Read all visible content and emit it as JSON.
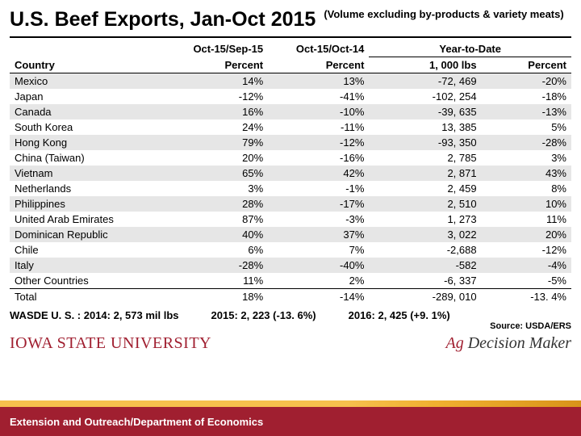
{
  "title": "U.S. Beef Exports, Jan-Oct 2015",
  "subtitle": "(Volume excluding by-products & variety meats)",
  "headers": {
    "country": "Country",
    "col2": "Oct-15/Sep-15",
    "col3": "Oct-15/Oct-14",
    "ytd": "Year-to-Date",
    "sub2": "Percent",
    "sub3": "Percent",
    "sub4": "1, 000 lbs",
    "sub5": "Percent"
  },
  "rows": [
    {
      "country": "Mexico",
      "c2": "14%",
      "c3": "13%",
      "c4": "-72, 469",
      "c5": "-20%"
    },
    {
      "country": "Japan",
      "c2": "-12%",
      "c3": "-41%",
      "c4": "-102, 254",
      "c5": "-18%"
    },
    {
      "country": "Canada",
      "c2": "16%",
      "c3": "-10%",
      "c4": "-39, 635",
      "c5": "-13%"
    },
    {
      "country": "South Korea",
      "c2": "24%",
      "c3": "-11%",
      "c4": "13, 385",
      "c5": "5%"
    },
    {
      "country": "Hong Kong",
      "c2": "79%",
      "c3": "-12%",
      "c4": "-93, 350",
      "c5": "-28%"
    },
    {
      "country": "China (Taiwan)",
      "c2": "20%",
      "c3": "-16%",
      "c4": "2, 785",
      "c5": "3%"
    },
    {
      "country": "Vietnam",
      "c2": "65%",
      "c3": "42%",
      "c4": "2, 871",
      "c5": "43%"
    },
    {
      "country": "Netherlands",
      "c2": "3%",
      "c3": "-1%",
      "c4": "2, 459",
      "c5": "8%"
    },
    {
      "country": "Philippines",
      "c2": "28%",
      "c3": "-17%",
      "c4": "2, 510",
      "c5": "10%"
    },
    {
      "country": "United Arab Emirates",
      "c2": "87%",
      "c3": "-3%",
      "c4": "1, 273",
      "c5": "11%"
    },
    {
      "country": "Dominican Republic",
      "c2": "40%",
      "c3": "37%",
      "c4": "3, 022",
      "c5": "20%"
    },
    {
      "country": "Chile",
      "c2": "6%",
      "c3": "7%",
      "c4": "-2,688",
      "c5": "-12%"
    },
    {
      "country": "Italy",
      "c2": "-28%",
      "c3": "-40%",
      "c4": "-582",
      "c5": "-4%"
    },
    {
      "country": "Other Countries",
      "c2": "11%",
      "c3": "2%",
      "c4": "-6, 337",
      "c5": "-5%"
    }
  ],
  "total": {
    "country": "Total",
    "c2": "18%",
    "c3": "-14%",
    "c4": "-289, 010",
    "c5": "-13. 4%"
  },
  "footnotes": {
    "f1": "WASDE U. S. : 2014: 2, 573 mil lbs",
    "f2": "2015: 2, 223 (-13. 6%)",
    "f3": "2016: 2, 425 (+9. 1%)"
  },
  "source": "Source: USDA/ERS",
  "logos": {
    "isu": "IOWA STATE UNIVERSITY",
    "adm": "Ag Decision Maker"
  },
  "footer": "Extension and Outreach/Department of Economics",
  "colors": {
    "red": "#a01f30",
    "row_stripe": "#e6e6e6",
    "gold_light": "#f6c04d",
    "gold_dark": "#d8941a"
  }
}
